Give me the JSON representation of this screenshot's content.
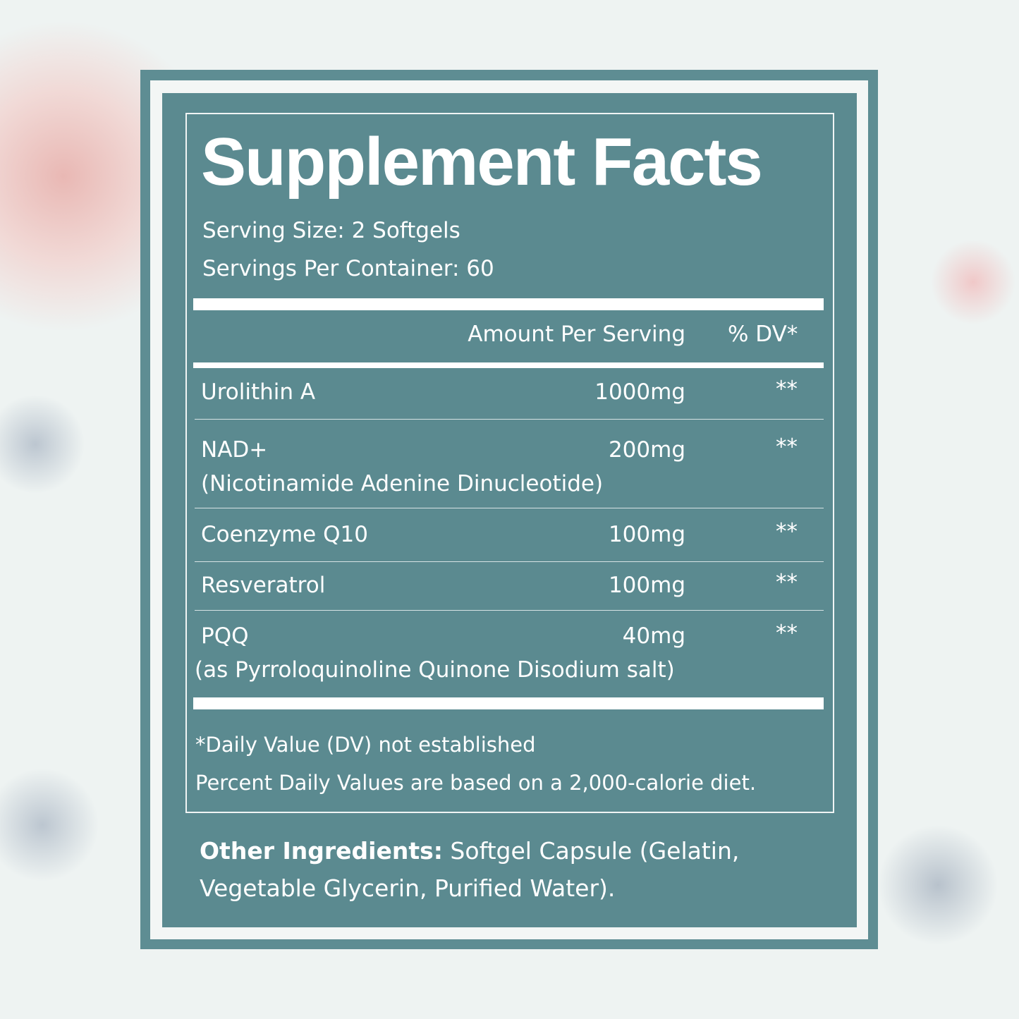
{
  "title": "Supplement Facts",
  "serving_size": "Serving Size: 2 Softgels",
  "servings_per_container": "Servings Per Container: 60",
  "header": {
    "amount": "Amount Per Serving",
    "dv": "% DV*"
  },
  "rows": [
    {
      "name": "Urolithin A",
      "amount": "1000mg",
      "dv": "**"
    },
    {
      "name": "NAD+",
      "sub": "(Nicotinamide Adenine Dinucleotide)",
      "amount": "200mg",
      "dv": "**"
    },
    {
      "name": "Coenzyme Q10",
      "amount": "100mg",
      "dv": "**"
    },
    {
      "name": "Resveratrol",
      "amount": "100mg",
      "dv": "**"
    },
    {
      "name": "PQQ",
      "sub": "(as Pyrroloquinoline Quinone Disodium salt)",
      "amount": "40mg",
      "dv": "**"
    }
  ],
  "footnote1": "*Daily Value (DV) not established",
  "footnote2": "Percent Daily Values are based on a 2,000-calorie diet.",
  "other": {
    "label": "Other Ingredients:",
    "text": " Softgel Capsule (Gelatin,",
    "text2": "Vegetable Glycerin, Purified Water)."
  },
  "colors": {
    "panel": "#5b8a90",
    "text": "#ffffff"
  }
}
